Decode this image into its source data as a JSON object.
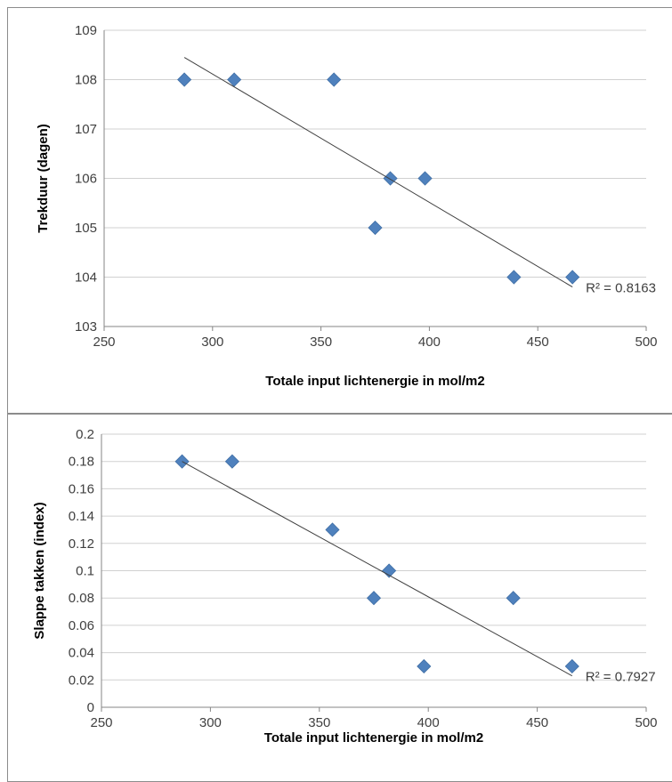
{
  "chart_data": [
    {
      "type": "scatter",
      "xlabel": "Totale input lichtenergie in mol/m2",
      "ylabel": "Trekduur (dagen)",
      "xlim": [
        250,
        500
      ],
      "ylim": [
        103,
        109
      ],
      "xticks": [
        "250",
        "300",
        "350",
        "400",
        "450",
        "500"
      ],
      "yticks": [
        "103",
        "104",
        "105",
        "106",
        "107",
        "108",
        "109"
      ],
      "grid": "horizontal",
      "marker_color": "#4f81bd",
      "series": [
        {
          "x": [
            287,
            310,
            356,
            382,
            375,
            398,
            439,
            466
          ],
          "y": [
            108,
            108,
            108,
            106,
            105,
            106,
            104,
            104
          ]
        }
      ],
      "trendline": {
        "type": "linear",
        "x0": 287,
        "y0": 108.45,
        "x1": 466,
        "y1": 103.8
      },
      "annotation": "R² = 0.8163"
    },
    {
      "type": "scatter",
      "xlabel": "Totale input lichtenergie in mol/m2",
      "ylabel": "Slappe takken (index)",
      "xlim": [
        250,
        500
      ],
      "ylim": [
        0,
        0.2
      ],
      "xticks": [
        "250",
        "300",
        "350",
        "400",
        "450",
        "500"
      ],
      "yticks": [
        "0",
        "0.02",
        "0.04",
        "0.06",
        "0.08",
        "0.1",
        "0.12",
        "0.14",
        "0.16",
        "0.18",
        "0.2"
      ],
      "grid": "horizontal",
      "marker_color": "#4f81bd",
      "series": [
        {
          "x": [
            287,
            310,
            356,
            382,
            375,
            398,
            439,
            466
          ],
          "y": [
            0.18,
            0.18,
            0.13,
            0.1,
            0.08,
            0.03,
            0.08,
            0.03
          ]
        }
      ],
      "trendline": {
        "type": "linear",
        "x0": 287,
        "y0": 0.18,
        "x1": 466,
        "y1": 0.023
      },
      "annotation": "R² = 0.7927"
    }
  ]
}
